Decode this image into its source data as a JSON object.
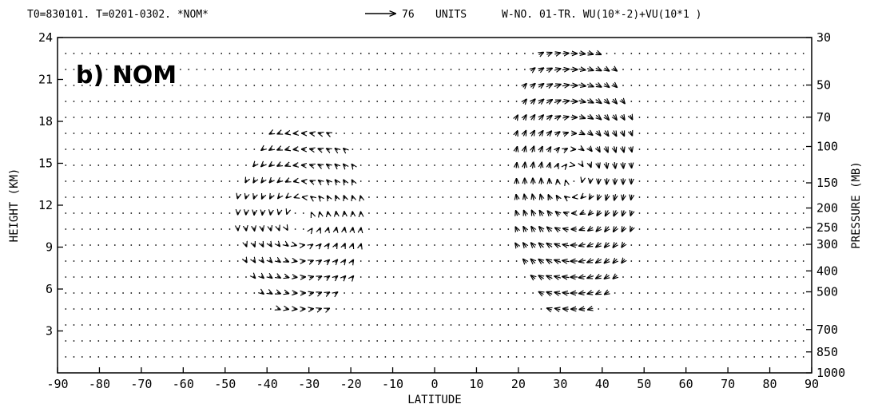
{
  "header": {
    "left": "T0=830101. T=0201-0302. *NOM*",
    "ref_value": "76",
    "ref_units": "UNITS",
    "right": "W-NO. 01-TR. WU(10*-2)+VU(10*1 )"
  },
  "chart_data": {
    "type": "vector-field",
    "title": "",
    "panel_label": "b) NOM",
    "xlabel": "LATITUDE",
    "ylabel": "HEIGHT (KM)",
    "y2label": "PRESSURE (MB)",
    "xlim": [
      -90,
      90
    ],
    "ylim": [
      0,
      24
    ],
    "x_ticks": [
      -90,
      -80,
      -70,
      -60,
      -50,
      -40,
      -30,
      -20,
      -10,
      0,
      10,
      20,
      30,
      40,
      50,
      60,
      70,
      80,
      90
    ],
    "y_ticks": [
      3,
      6,
      9,
      12,
      15,
      18,
      21,
      24
    ],
    "pressure_ticks": [
      {
        "label": "30",
        "height_km": 24.0
      },
      {
        "label": "50",
        "height_km": 20.6
      },
      {
        "label": "70",
        "height_km": 18.3
      },
      {
        "label": "100",
        "height_km": 16.2
      },
      {
        "label": "150",
        "height_km": 13.6
      },
      {
        "label": "200",
        "height_km": 11.8
      },
      {
        "label": "250",
        "height_km": 10.4
      },
      {
        "label": "300",
        "height_km": 9.2
      },
      {
        "label": "400",
        "height_km": 7.3
      },
      {
        "label": "500",
        "height_km": 5.8
      },
      {
        "label": "700",
        "height_km": 3.1
      },
      {
        "label": "850",
        "height_km": 1.5
      },
      {
        "label": "1000",
        "height_km": 0.0
      }
    ],
    "reference_arrow": {
      "value": 76,
      "units": "UNITS"
    },
    "cells": [
      {
        "name": "southern-cell",
        "center": [
          -32,
          11
        ],
        "radius": [
          15,
          7
        ],
        "sense": -1,
        "strength": 0.55
      },
      {
        "name": "northern-cell",
        "center": [
          33,
          14
        ],
        "radius": [
          15,
          10
        ],
        "sense": 1,
        "strength": 1.0
      }
    ]
  }
}
